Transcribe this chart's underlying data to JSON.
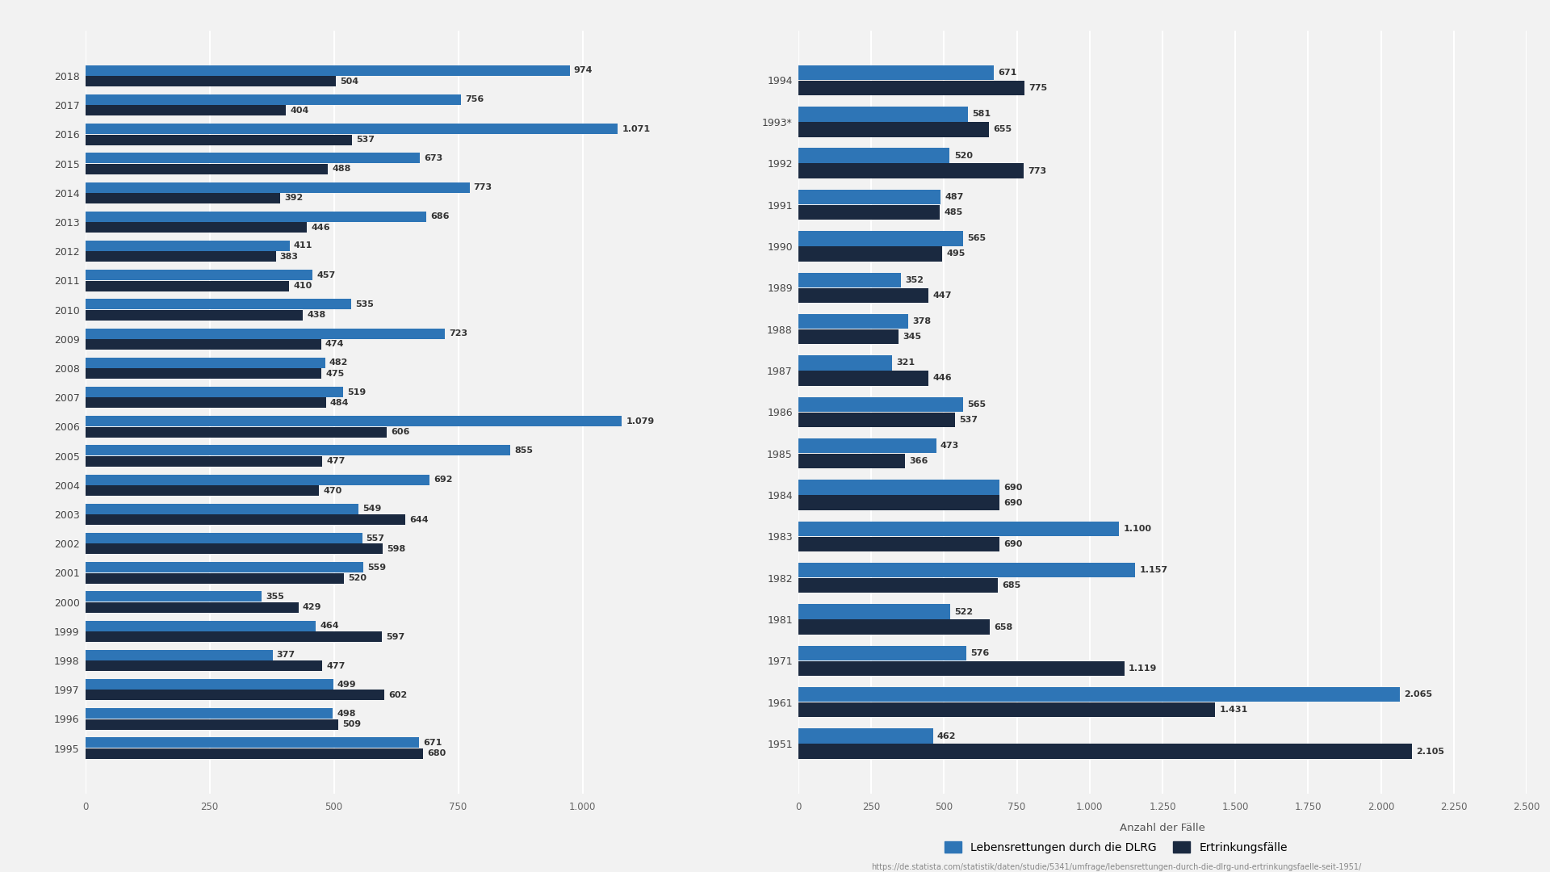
{
  "left_years": [
    2018,
    2017,
    2016,
    2015,
    2014,
    2013,
    2012,
    2011,
    2010,
    2009,
    2008,
    2007,
    2006,
    2005,
    2004,
    2003,
    2002,
    2001,
    2000,
    1999,
    1998,
    1997,
    1996,
    1995
  ],
  "left_ertrinken": [
    504,
    404,
    537,
    488,
    392,
    446,
    383,
    410,
    438,
    474,
    475,
    484,
    606,
    477,
    470,
    644,
    598,
    520,
    429,
    597,
    477,
    602,
    509,
    680
  ],
  "left_rettungen": [
    974,
    756,
    1071,
    673,
    773,
    686,
    411,
    457,
    535,
    723,
    482,
    519,
    1079,
    855,
    692,
    549,
    557,
    559,
    355,
    464,
    377,
    499,
    498,
    671
  ],
  "right_years": [
    "1994",
    "1993*",
    "1992",
    "1991",
    "1990",
    "1989",
    "1988",
    "1987",
    "1986",
    "1985",
    "1984",
    "1983",
    "1982",
    "1981",
    "1971",
    "1961",
    "1951"
  ],
  "right_ertrinken": [
    775,
    655,
    773,
    485,
    495,
    447,
    345,
    446,
    537,
    366,
    690,
    690,
    685,
    658,
    1119,
    1431,
    2105
  ],
  "right_rettungen": [
    671,
    581,
    520,
    487,
    565,
    352,
    378,
    321,
    565,
    473,
    690,
    1100,
    1157,
    522,
    576,
    2065,
    462
  ],
  "color_rettungen": "#2E75B6",
  "color_ertrinken": "#1A2940",
  "background_color": "#F2F2F2",
  "xlabel": "Anzahl der Fälle",
  "legend_rettungen": "Lebensrettungen durch die DLRG",
  "legend_ertrinken": "Ertrinkungsfälle",
  "source_url": "https://de.statista.com/statistik/daten/studie/5341/umfrage/lebensrettungen-durch-die-dlrg-und-ertrinkungsfaelle-seit-1951/",
  "xlim_left": 1200,
  "xlim_right": 2500,
  "xticks_left": [
    0,
    250,
    500,
    750,
    1000
  ],
  "xticks_right": [
    0,
    250,
    500,
    750,
    1000,
    1250,
    1500,
    1750,
    2000,
    2250,
    2500
  ]
}
